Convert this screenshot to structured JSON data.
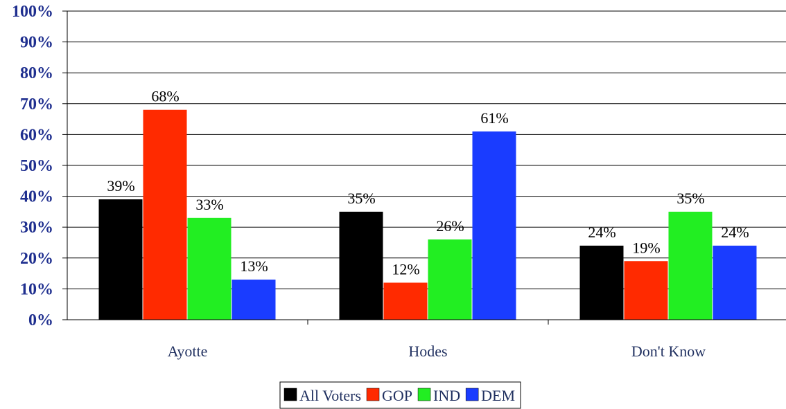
{
  "chart_data": {
    "type": "bar",
    "categories": [
      "Ayotte",
      "Hodes",
      "Don't Know"
    ],
    "series": [
      {
        "name": "All Voters",
        "color": "#000000",
        "values": [
          39,
          35,
          24
        ]
      },
      {
        "name": "GOP",
        "color": "#ff2a00",
        "values": [
          68,
          12,
          19
        ]
      },
      {
        "name": "IND",
        "color": "#22ee22",
        "values": [
          33,
          26,
          35
        ]
      },
      {
        "name": "DEM",
        "color": "#1a3cff",
        "values": [
          13,
          61,
          24
        ]
      }
    ],
    "ylim": [
      0,
      100
    ],
    "yticks": [
      "0%",
      "10%",
      "20%",
      "30%",
      "40%",
      "50%",
      "60%",
      "70%",
      "80%",
      "90%",
      "100%"
    ],
    "value_suffix": "%",
    "grid": true,
    "legend_position": "bottom"
  }
}
